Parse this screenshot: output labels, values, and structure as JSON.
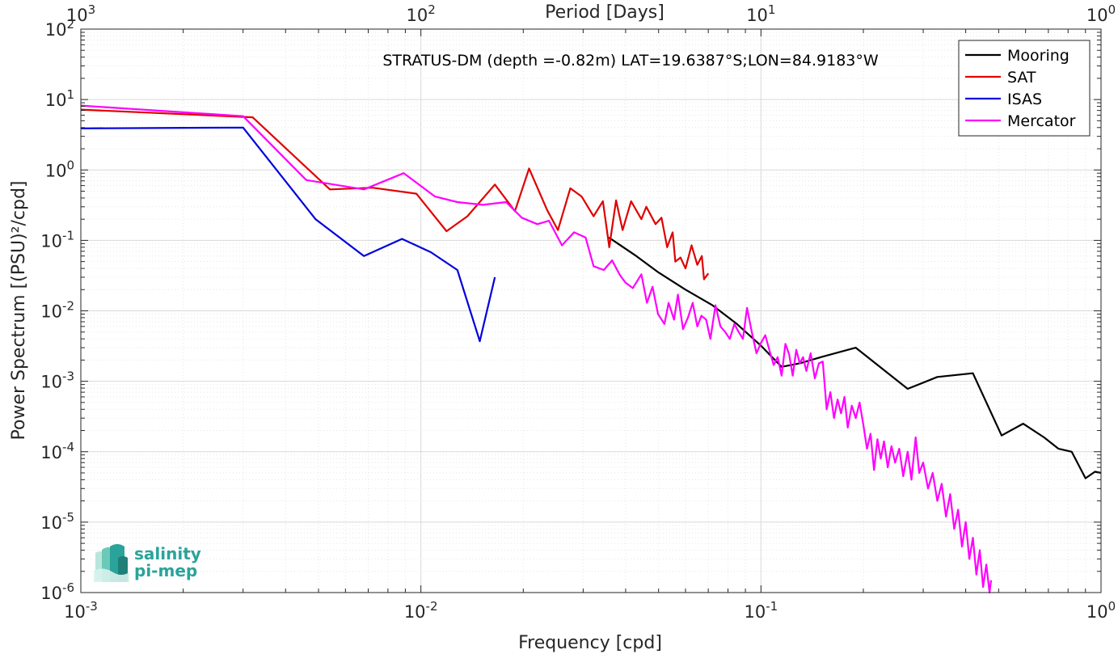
{
  "chart_data": {
    "type": "line",
    "title": "STRATUS-DM (depth =-0.82m) LAT=19.6387°S;LON=84.9183°W",
    "xlabel": "Frequency [cpd]",
    "ylabel": "Power Spectrum [(PSU)²/cpd]",
    "x2label": "Period [Days]",
    "xscale": "log",
    "yscale": "log",
    "xlim": [
      0.001,
      1
    ],
    "ylim": [
      1e-06,
      100
    ],
    "grid": true,
    "legend_position": "top-right",
    "x_ticks": [
      {
        "value": 0.001,
        "base": "10",
        "exp": "-3"
      },
      {
        "value": 0.01,
        "base": "10",
        "exp": "-2"
      },
      {
        "value": 0.1,
        "base": "10",
        "exp": "-1"
      },
      {
        "value": 1,
        "base": "10",
        "exp": "0"
      }
    ],
    "x2_ticks": [
      {
        "value": 0.001,
        "base": "10",
        "exp": "3"
      },
      {
        "value": 0.01,
        "base": "10",
        "exp": "2"
      },
      {
        "value": 0.1,
        "base": "10",
        "exp": "1"
      },
      {
        "value": 1,
        "base": "10",
        "exp": "0"
      }
    ],
    "y_ticks": [
      {
        "value": 100,
        "base": "10",
        "exp": "2"
      },
      {
        "value": 10,
        "base": "10",
        "exp": "1"
      },
      {
        "value": 1,
        "base": "10",
        "exp": "0"
      },
      {
        "value": 0.1,
        "base": "10",
        "exp": "-1"
      },
      {
        "value": 0.01,
        "base": "10",
        "exp": "-2"
      },
      {
        "value": 0.001,
        "base": "10",
        "exp": "-3"
      },
      {
        "value": 0.0001,
        "base": "10",
        "exp": "-4"
      },
      {
        "value": 1e-05,
        "base": "10",
        "exp": "-5"
      },
      {
        "value": 1e-06,
        "base": "10",
        "exp": "-6"
      }
    ],
    "series": [
      {
        "name": "Mooring",
        "color": "#000000",
        "points": [
          [
            0.0357,
            0.11
          ],
          [
            0.043,
            0.06
          ],
          [
            0.05,
            0.035
          ],
          [
            0.06,
            0.02
          ],
          [
            0.072,
            0.012
          ],
          [
            0.085,
            0.0065
          ],
          [
            0.1,
            0.0032
          ],
          [
            0.115,
            0.0016
          ],
          [
            0.13,
            0.0018
          ],
          [
            0.15,
            0.0022
          ],
          [
            0.19,
            0.003
          ],
          [
            0.27,
            0.00078
          ],
          [
            0.33,
            0.00115
          ],
          [
            0.42,
            0.0013
          ],
          [
            0.51,
            0.00017
          ],
          [
            0.59,
            0.00025
          ],
          [
            0.68,
            0.00016
          ],
          [
            0.75,
            0.00011
          ],
          [
            0.82,
            0.0001
          ],
          [
            0.9,
            4.2e-05
          ],
          [
            0.96,
            5.2e-05
          ],
          [
            1.0,
            5e-05
          ]
        ]
      },
      {
        "name": "SAT",
        "color": "#e00000",
        "points": [
          [
            0.001,
            7.2
          ],
          [
            0.0032,
            5.6
          ],
          [
            0.0054,
            0.53
          ],
          [
            0.0072,
            0.56
          ],
          [
            0.0097,
            0.46
          ],
          [
            0.0119,
            0.135
          ],
          [
            0.0137,
            0.22
          ],
          [
            0.0165,
            0.62
          ],
          [
            0.0189,
            0.26
          ],
          [
            0.0208,
            1.05
          ],
          [
            0.0235,
            0.27
          ],
          [
            0.0253,
            0.14
          ],
          [
            0.0275,
            0.55
          ],
          [
            0.0297,
            0.42
          ],
          [
            0.0322,
            0.22
          ],
          [
            0.0343,
            0.36
          ],
          [
            0.0358,
            0.08
          ],
          [
            0.0375,
            0.37
          ],
          [
            0.0392,
            0.14
          ],
          [
            0.0415,
            0.36
          ],
          [
            0.0445,
            0.2
          ],
          [
            0.046,
            0.3
          ],
          [
            0.049,
            0.17
          ],
          [
            0.051,
            0.21
          ],
          [
            0.053,
            0.08
          ],
          [
            0.055,
            0.13
          ],
          [
            0.056,
            0.05
          ],
          [
            0.058,
            0.057
          ],
          [
            0.06,
            0.04
          ],
          [
            0.0625,
            0.085
          ],
          [
            0.065,
            0.045
          ],
          [
            0.067,
            0.06
          ],
          [
            0.068,
            0.028
          ],
          [
            0.07,
            0.034
          ]
        ]
      },
      {
        "name": "ISAS",
        "color": "#0000dd",
        "points": [
          [
            0.001,
            3.9
          ],
          [
            0.003,
            4.0
          ],
          [
            0.0049,
            0.2
          ],
          [
            0.0068,
            0.06
          ],
          [
            0.0088,
            0.105
          ],
          [
            0.0107,
            0.068
          ],
          [
            0.0128,
            0.038
          ],
          [
            0.0149,
            0.0037
          ],
          [
            0.0165,
            0.03
          ]
        ]
      },
      {
        "name": "Mercator",
        "color": "#ff00ff",
        "points": [
          [
            0.001,
            8.2
          ],
          [
            0.003,
            5.8
          ],
          [
            0.0046,
            0.72
          ],
          [
            0.0068,
            0.53
          ],
          [
            0.0089,
            0.9
          ],
          [
            0.011,
            0.42
          ],
          [
            0.0128,
            0.35
          ],
          [
            0.0152,
            0.32
          ],
          [
            0.0178,
            0.35
          ],
          [
            0.0198,
            0.21
          ],
          [
            0.022,
            0.17
          ],
          [
            0.0238,
            0.19
          ],
          [
            0.026,
            0.085
          ],
          [
            0.0282,
            0.13
          ],
          [
            0.0305,
            0.11
          ],
          [
            0.0322,
            0.043
          ],
          [
            0.0345,
            0.038
          ],
          [
            0.0365,
            0.052
          ],
          [
            0.0385,
            0.032
          ],
          [
            0.04,
            0.025
          ],
          [
            0.042,
            0.021
          ],
          [
            0.0445,
            0.033
          ],
          [
            0.0462,
            0.013
          ],
          [
            0.048,
            0.022
          ],
          [
            0.0498,
            0.009
          ],
          [
            0.052,
            0.0065
          ],
          [
            0.0535,
            0.013
          ],
          [
            0.0555,
            0.0075
          ],
          [
            0.057,
            0.017
          ],
          [
            0.059,
            0.0055
          ],
          [
            0.061,
            0.008
          ],
          [
            0.063,
            0.013
          ],
          [
            0.065,
            0.006
          ],
          [
            0.0668,
            0.0085
          ],
          [
            0.069,
            0.0075
          ],
          [
            0.071,
            0.004
          ],
          [
            0.0735,
            0.012
          ],
          [
            0.076,
            0.006
          ],
          [
            0.0785,
            0.005
          ],
          [
            0.081,
            0.004
          ],
          [
            0.0835,
            0.0065
          ],
          [
            0.086,
            0.005
          ],
          [
            0.0885,
            0.004
          ],
          [
            0.091,
            0.011
          ],
          [
            0.094,
            0.005
          ],
          [
            0.097,
            0.0025
          ],
          [
            0.1,
            0.0035
          ],
          [
            0.103,
            0.0045
          ],
          [
            0.106,
            0.0027
          ],
          [
            0.109,
            0.0017
          ],
          [
            0.112,
            0.0022
          ],
          [
            0.115,
            0.0012
          ],
          [
            0.118,
            0.0034
          ],
          [
            0.121,
            0.0024
          ],
          [
            0.124,
            0.0012
          ],
          [
            0.127,
            0.0028
          ],
          [
            0.13,
            0.0018
          ],
          [
            0.133,
            0.0022
          ],
          [
            0.136,
            0.0014
          ],
          [
            0.14,
            0.0025
          ],
          [
            0.144,
            0.0011
          ],
          [
            0.148,
            0.0018
          ],
          [
            0.152,
            0.0019
          ],
          [
            0.156,
            0.0004
          ],
          [
            0.16,
            0.0007
          ],
          [
            0.164,
            0.0003
          ],
          [
            0.168,
            0.00055
          ],
          [
            0.172,
            0.00035
          ],
          [
            0.176,
            0.0006
          ],
          [
            0.18,
            0.00022
          ],
          [
            0.185,
            0.00045
          ],
          [
            0.19,
            0.0003
          ],
          [
            0.195,
            0.0005
          ],
          [
            0.2,
            0.00024
          ],
          [
            0.205,
            0.00011
          ],
          [
            0.21,
            0.00018
          ],
          [
            0.215,
            5.5e-05
          ],
          [
            0.22,
            0.00015
          ],
          [
            0.225,
            8e-05
          ],
          [
            0.23,
            0.00014
          ],
          [
            0.236,
            6e-05
          ],
          [
            0.242,
            0.00012
          ],
          [
            0.248,
            7e-05
          ],
          [
            0.255,
            0.00011
          ],
          [
            0.262,
            4.5e-05
          ],
          [
            0.27,
            0.0001
          ],
          [
            0.277,
            4e-05
          ],
          [
            0.285,
            0.00016
          ],
          [
            0.292,
            5e-05
          ],
          [
            0.3,
            7e-05
          ],
          [
            0.31,
            3e-05
          ],
          [
            0.32,
            5e-05
          ],
          [
            0.33,
            2e-05
          ],
          [
            0.34,
            3.5e-05
          ],
          [
            0.35,
            1.2e-05
          ],
          [
            0.36,
            2.5e-05
          ],
          [
            0.37,
            8e-06
          ],
          [
            0.38,
            1.5e-05
          ],
          [
            0.39,
            4.5e-06
          ],
          [
            0.4,
            1e-05
          ],
          [
            0.41,
            3e-06
          ],
          [
            0.42,
            6e-06
          ],
          [
            0.43,
            1.8e-06
          ],
          [
            0.44,
            4e-06
          ],
          [
            0.45,
            1.2e-06
          ],
          [
            0.46,
            2.5e-06
          ],
          [
            0.47,
            1e-06
          ],
          [
            0.475,
            1.5e-06
          ]
        ]
      }
    ]
  },
  "logo": {
    "line1": "salinity",
    "line2": "pi-mep"
  }
}
